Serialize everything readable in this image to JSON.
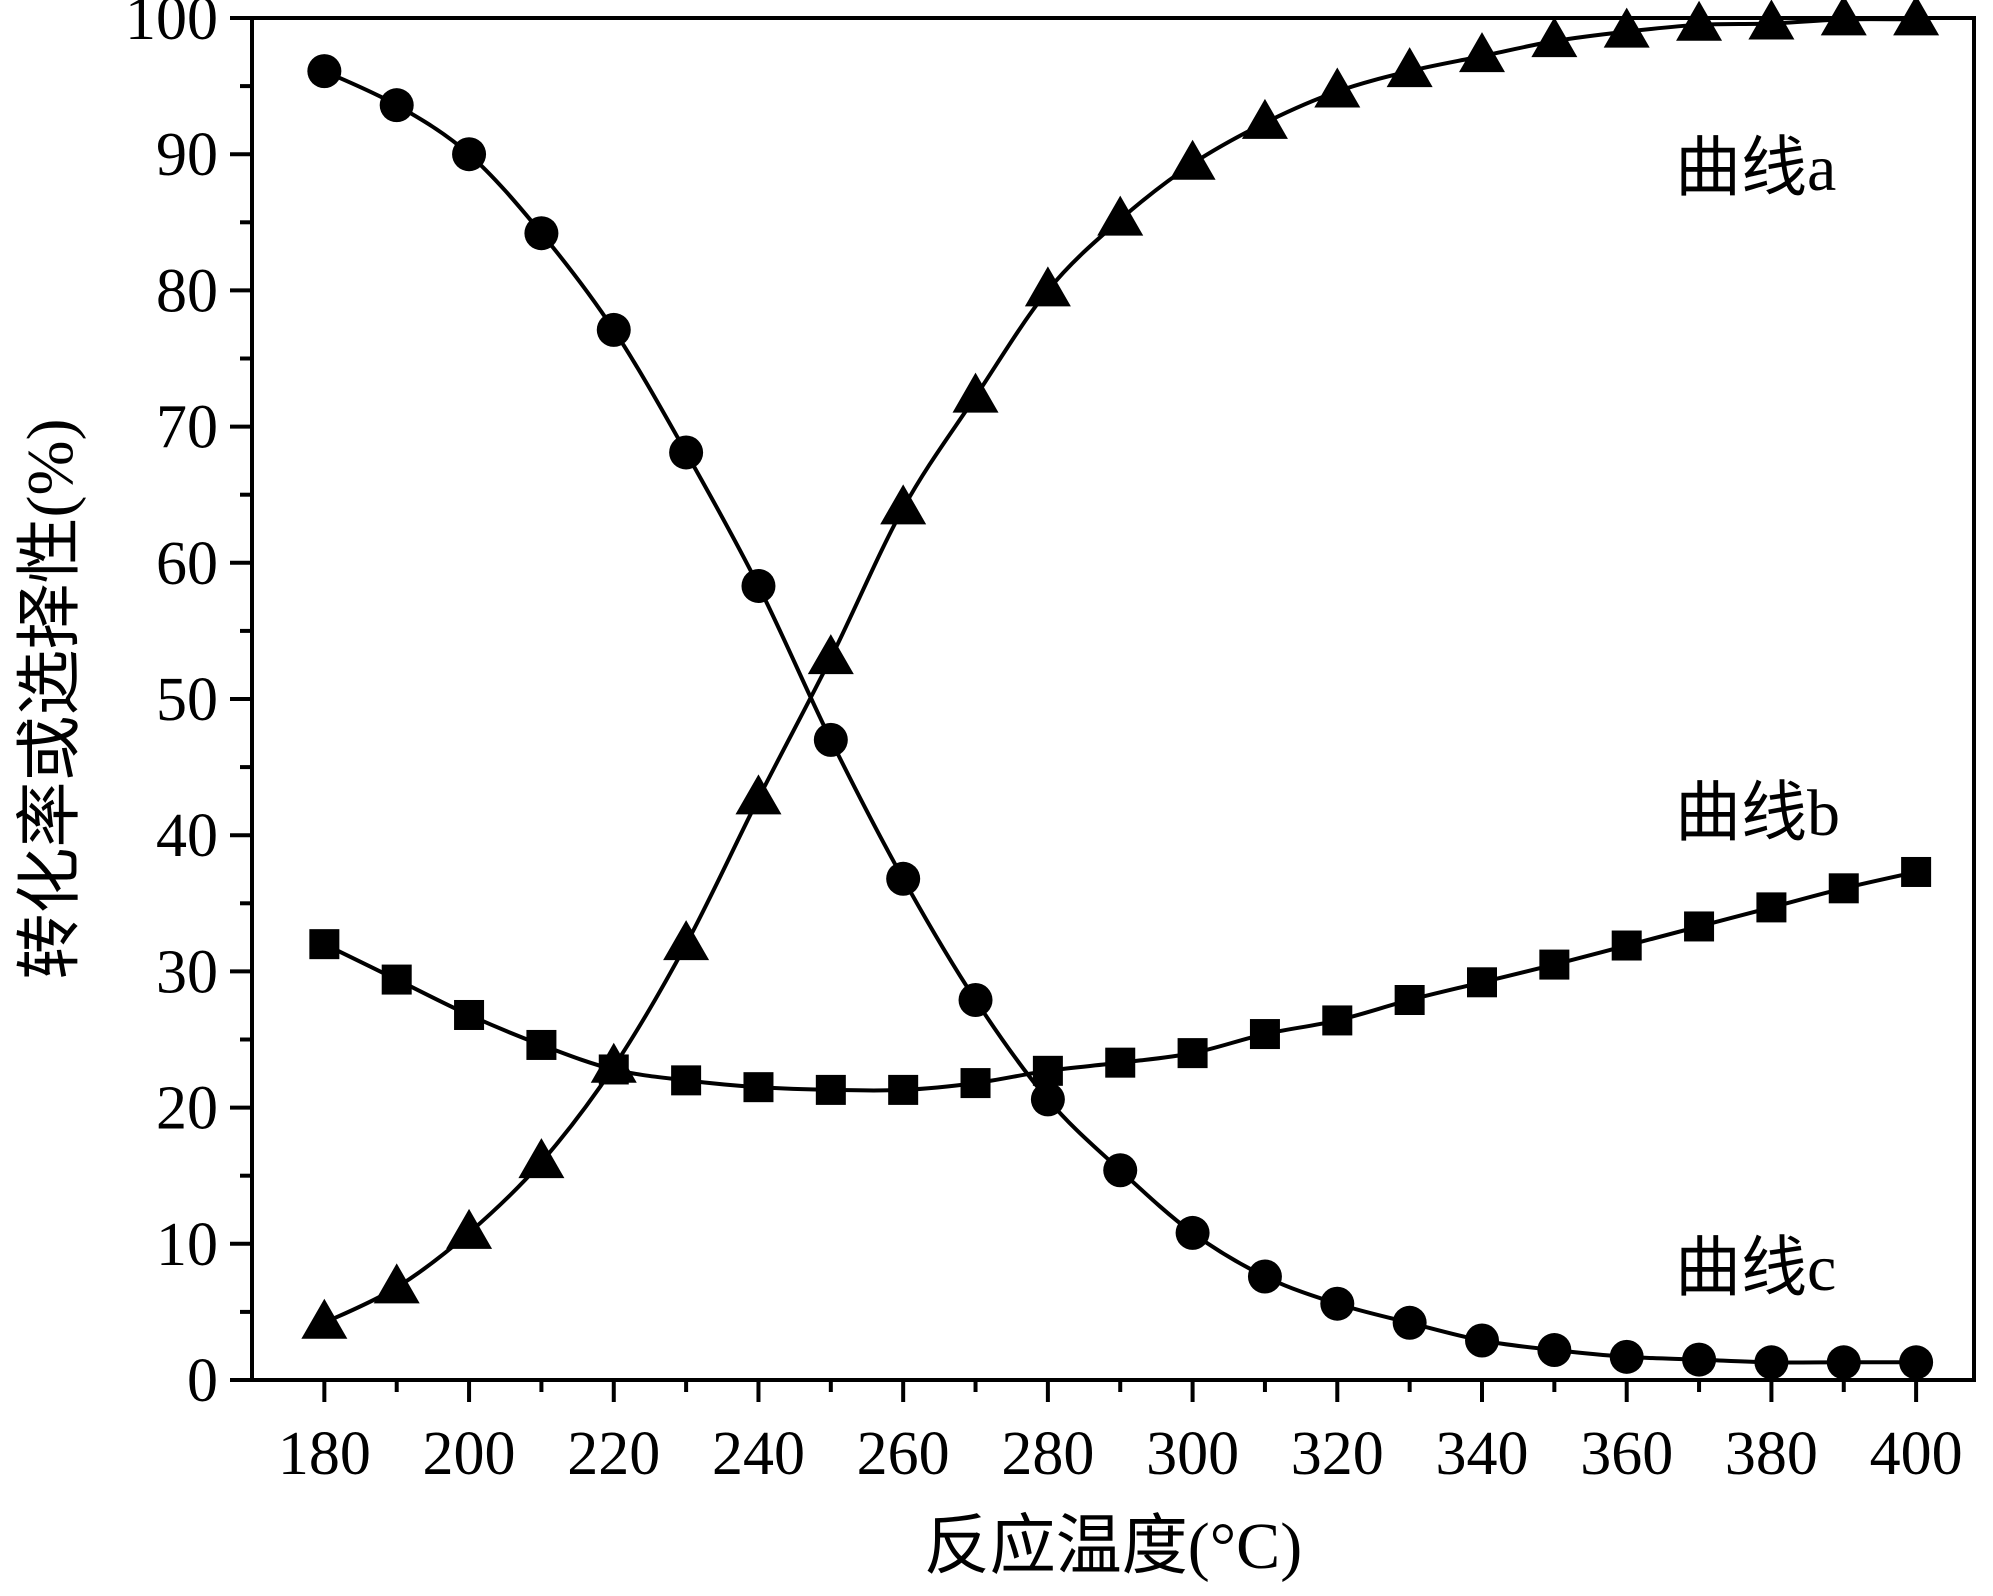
{
  "chart_data": {
    "type": "scatter",
    "title": "",
    "xlabel": "反应温度(°C)",
    "ylabel": "转化率或选择性(%)",
    "xlim": [
      170,
      408
    ],
    "ylim": [
      0,
      100
    ],
    "x_ticks": [
      180,
      200,
      220,
      240,
      260,
      280,
      300,
      320,
      340,
      360,
      380,
      400
    ],
    "y_ticks": [
      0,
      10,
      20,
      30,
      40,
      50,
      60,
      70,
      80,
      90,
      100
    ],
    "grid": false,
    "x": [
      180,
      190,
      200,
      210,
      220,
      230,
      240,
      250,
      260,
      270,
      280,
      290,
      300,
      310,
      320,
      330,
      340,
      350,
      360,
      370,
      380,
      390,
      400
    ],
    "series": [
      {
        "name": "曲线a",
        "marker": "triangle",
        "label_position": "upper-right",
        "values": [
          4.2,
          6.8,
          10.8,
          16,
          23,
          32,
          42.7,
          53,
          64,
          72.2,
          80,
          85.2,
          89.3,
          92.3,
          94.6,
          96.1,
          97.2,
          98.3,
          99,
          99.5,
          99.6,
          99.9,
          99.9
        ]
      },
      {
        "name": "曲线b",
        "marker": "square",
        "label_position": "middle-right",
        "values": [
          32,
          29.4,
          26.8,
          24.6,
          22.8,
          22,
          21.5,
          21.3,
          21.3,
          21.8,
          22.7,
          23.3,
          24,
          25.4,
          26.4,
          27.9,
          29.2,
          30.5,
          31.9,
          33.3,
          34.7,
          36.1,
          37.3
        ]
      },
      {
        "name": "曲线c",
        "marker": "circle",
        "label_position": "lower-right",
        "values": [
          96.1,
          93.6,
          90,
          84.2,
          77.1,
          68.1,
          58.3,
          47,
          36.8,
          27.9,
          20.6,
          15.4,
          10.8,
          7.6,
          5.6,
          4.2,
          2.9,
          2.2,
          1.7,
          1.5,
          1.3,
          1.3,
          1.3
        ]
      }
    ]
  }
}
